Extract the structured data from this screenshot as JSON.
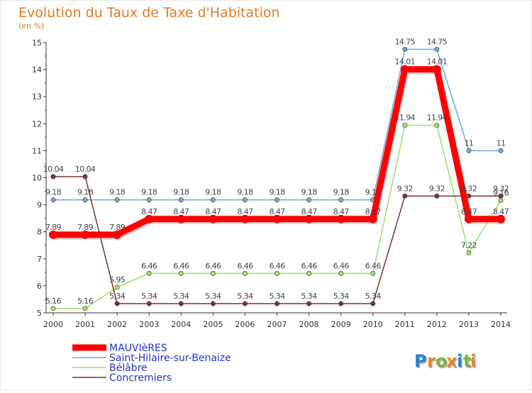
{
  "chart_data": {
    "type": "line",
    "title": "Evolution du Taux de Taxe d'Habitation",
    "subtitle": "(en %)",
    "x": [
      "2000",
      "2001",
      "2002",
      "2003",
      "2004",
      "2005",
      "2006",
      "2007",
      "2008",
      "2009",
      "2010",
      "2011",
      "2012",
      "2013",
      "2014"
    ],
    "ylim": [
      5,
      15
    ],
    "yticks": [
      5,
      6,
      7,
      8,
      9,
      10,
      11,
      12,
      13,
      14,
      15
    ],
    "grid": false,
    "legend_position": "bottom-left",
    "series": [
      {
        "name": "MAUVIèRES",
        "color": "#ff0000",
        "values": [
          7.89,
          7.89,
          7.89,
          8.47,
          8.47,
          8.47,
          8.47,
          8.47,
          8.47,
          8.47,
          8.47,
          14.01,
          14.01,
          8.47,
          8.47
        ],
        "labels": [
          "7.89",
          "7.89",
          "7.89",
          "8.47",
          "8.47",
          "8.47",
          "8.47",
          "8.47",
          "8.47",
          "8.47",
          "8.47",
          "14.01",
          "14.01",
          "8.47",
          "8.47"
        ]
      },
      {
        "name": "Saint-Hilaire-sur-Benaize",
        "color": "#6fa8dc",
        "values": [
          9.18,
          9.18,
          9.18,
          9.18,
          9.18,
          9.18,
          9.18,
          9.18,
          9.18,
          9.18,
          9.18,
          14.75,
          14.75,
          11,
          11
        ],
        "labels": [
          "9.18",
          "9.18",
          "9.18",
          "9.18",
          "9.18",
          "9.18",
          "9.18",
          "9.18",
          "9.18",
          "9.18",
          "9.18",
          "14.75",
          "14.75",
          "11",
          "11"
        ]
      },
      {
        "name": "Bélâbre",
        "color": "#99e06c",
        "values": [
          5.16,
          5.16,
          5.95,
          6.46,
          6.46,
          6.46,
          6.46,
          6.46,
          6.46,
          6.46,
          6.46,
          11.94,
          11.94,
          7.22,
          9.16
        ],
        "labels": [
          "5.16",
          "5.16",
          "5.95",
          "6.46",
          "6.46",
          "6.46",
          "6.46",
          "6.46",
          "6.46",
          "6.46",
          "6.46",
          "11.94",
          "11.94",
          "7.22",
          "9.16"
        ]
      },
      {
        "name": "Concremiers",
        "color": "#7a3333",
        "values": [
          10.04,
          10.04,
          5.34,
          5.34,
          5.34,
          5.34,
          5.34,
          5.34,
          5.34,
          5.34,
          5.34,
          9.32,
          9.32,
          9.32,
          9.32
        ],
        "labels": [
          "10.04",
          "10.04",
          "5.34",
          "5.34",
          "5.34",
          "5.34",
          "5.34",
          "5.34",
          "5.34",
          "5.34",
          "5.34",
          "9.32",
          "9.32",
          "9.32",
          "9.32"
        ]
      }
    ]
  },
  "branding": {
    "logo_text": "Proxiti",
    "logo_colors": [
      "#2a7fd4",
      "#e8862a",
      "#77b83a",
      "#e8862a",
      "#2a7fd4",
      "#77b83a",
      "#e8862a"
    ]
  }
}
